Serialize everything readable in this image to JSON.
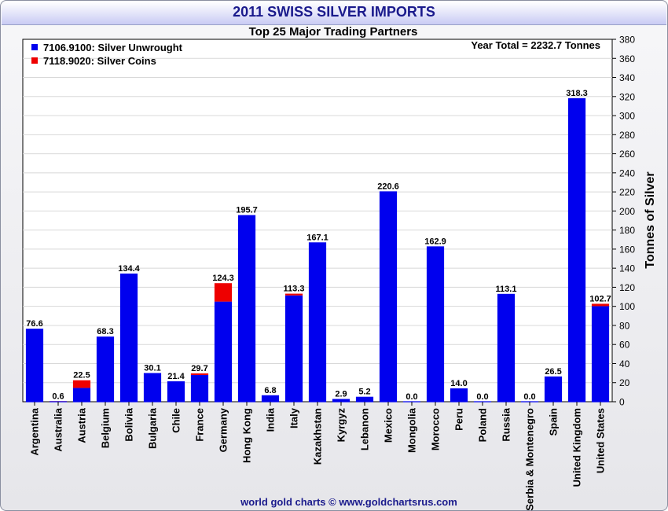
{
  "chart_data": {
    "type": "bar",
    "stacked": true,
    "title": "2011 SWISS SILVER IMPORTS",
    "subtitle": "Top 25 Major Trading Partners",
    "year_total": "Year Total = 2232.7 Tonnes",
    "ylabel": "Tonnes of Silver",
    "ylim": [
      0,
      380
    ],
    "ytick_step": 20,
    "legend_position": "top-left",
    "categories": [
      "Argentina",
      "Australia",
      "Austria",
      "Belgium",
      "Bolivia",
      "Bulgaria",
      "Chile",
      "France",
      "Germany",
      "Hong Kong",
      "India",
      "Italy",
      "Kazakhstan",
      "Kyrgyz",
      "Lebanon",
      "Mexico",
      "Mongolia",
      "Morocco",
      "Peru",
      "Poland",
      "Russia",
      "Serbia & Montenegro",
      "Spain",
      "United Kingdom",
      "United States"
    ],
    "series": [
      {
        "name": "7106.9100: Silver Unwrought",
        "color": "#0000ee",
        "values": [
          76.6,
          0.0,
          14.5,
          68.3,
          134.4,
          30.1,
          21.4,
          28.0,
          105.0,
          195.7,
          6.8,
          111.5,
          167.1,
          2.9,
          5.2,
          220.6,
          0.0,
          162.9,
          14.0,
          0.0,
          113.1,
          0.0,
          26.5,
          318.3,
          100.2
        ]
      },
      {
        "name": "7118.9020: Silver Coins",
        "color": "#ee0000",
        "values": [
          0.0,
          0.6,
          8.0,
          0.0,
          0.0,
          0.0,
          0.0,
          1.7,
          19.3,
          0.0,
          0.0,
          1.8,
          0.0,
          0.0,
          0.0,
          0.0,
          0.0,
          0.0,
          0.0,
          0.0,
          0.0,
          0.0,
          0.0,
          0.0,
          2.5
        ]
      }
    ],
    "totals": [
      "76.6",
      "0.6",
      "22.5",
      "68.3",
      "134.4",
      "30.1",
      "21.4",
      "29.7",
      "124.3",
      "195.7",
      "6.8",
      "113.3",
      "167.1",
      "2.9",
      "5.2",
      "220.6",
      "0.0",
      "162.9",
      "14.0",
      "0.0",
      "113.1",
      "0.0",
      "26.5",
      "318.3",
      "102.7"
    ]
  },
  "footer": "world gold charts © www.goldchartsrus.com"
}
